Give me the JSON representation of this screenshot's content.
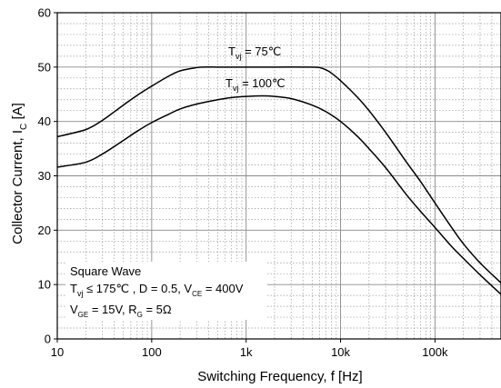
{
  "chart_data": {
    "type": "line",
    "title": "",
    "xlabel": "Switching Frequency, f [Hz]",
    "ylabel": {
      "main": "Collector Current, I",
      "sub": "C",
      "unit": " [A]"
    },
    "x_scale": "log",
    "xlim": [
      10,
      500000
    ],
    "ylim": [
      0,
      60
    ],
    "x_ticks": [
      {
        "value": 10,
        "label": "10"
      },
      {
        "value": 100,
        "label": "100"
      },
      {
        "value": 1000,
        "label": "1k"
      },
      {
        "value": 10000,
        "label": "10k"
      },
      {
        "value": 100000,
        "label": "100k"
      }
    ],
    "y_ticks": [
      0,
      10,
      20,
      30,
      40,
      50,
      60
    ],
    "grid": true,
    "series": [
      {
        "name": "75℃",
        "label": {
          "prefix": "T",
          "sub": "vj",
          "suffix": " = 75℃"
        },
        "x": [
          10,
          20,
          30,
          50,
          70,
          100,
          150,
          200,
          300,
          350,
          500,
          1000,
          2000,
          5000,
          6000,
          7000,
          8000,
          10000,
          15000,
          20000,
          30000,
          50000,
          70000,
          100000,
          150000,
          200000,
          300000,
          500000
        ],
        "y": [
          37.2,
          38.5,
          40.2,
          43.0,
          44.8,
          46.5,
          48.3,
          49.3,
          49.9,
          50.0,
          50.0,
          50.0,
          50.0,
          50.0,
          49.9,
          49.5,
          48.9,
          47.5,
          44.5,
          42.0,
          38.0,
          32.5,
          29.0,
          25.0,
          20.5,
          17.5,
          14.0,
          10.3
        ]
      },
      {
        "name": "100℃",
        "label": {
          "prefix": "T",
          "sub": "vj",
          "suffix": " = 100℃"
        },
        "x": [
          10,
          20,
          30,
          50,
          70,
          100,
          150,
          200,
          300,
          500,
          700,
          1000,
          1500,
          2000,
          3000,
          5000,
          7000,
          10000,
          15000,
          20000,
          30000,
          50000,
          70000,
          100000,
          150000,
          200000,
          300000,
          500000
        ],
        "y": [
          31.6,
          32.5,
          34.0,
          36.5,
          38.2,
          39.8,
          41.3,
          42.3,
          43.2,
          44.0,
          44.4,
          44.6,
          44.7,
          44.6,
          44.2,
          43.0,
          41.8,
          40.0,
          37.3,
          35.0,
          31.5,
          26.5,
          23.5,
          20.5,
          17.0,
          14.8,
          11.8,
          8.2
        ]
      }
    ],
    "annotation": {
      "line1": "Square Wave",
      "line2": {
        "t": "T",
        "t_sub": "vj",
        "a": " ≤ 175℃ , D = 0.5, V",
        "v_sub": "CE",
        "b": " = 400V"
      },
      "line3": {
        "v": "V",
        "v_sub": "GE",
        "a": " = 15V, R",
        "r_sub": "G",
        "b": " = 5Ω"
      }
    }
  }
}
